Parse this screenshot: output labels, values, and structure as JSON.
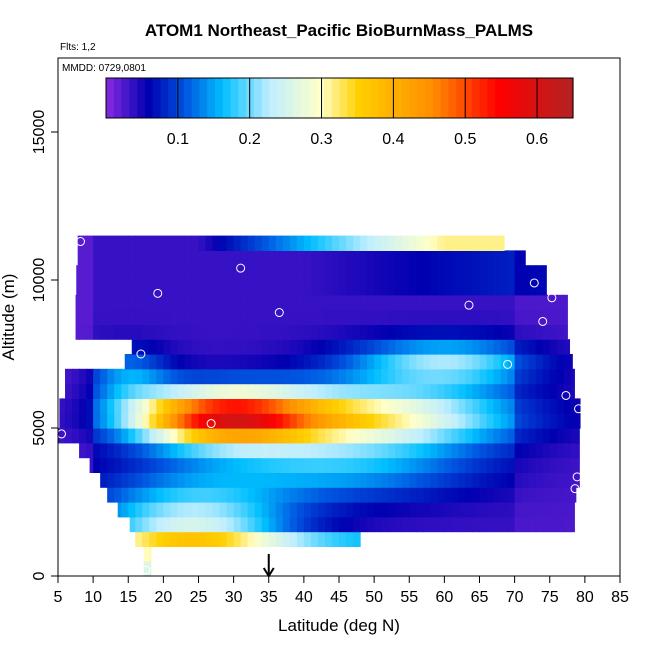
{
  "chart_data": {
    "type": "heatmap",
    "title": "ATOM1 Northeast_Pacific BioBurnMass_PALMS",
    "annotations": {
      "flights": "Flts: 1,2",
      "dates": "MMDD: 0729,0801"
    },
    "xlabel": "Latitude (deg N)",
    "ylabel": "Altitude (m)",
    "xlim": [
      5,
      85
    ],
    "ylim": [
      0,
      17500
    ],
    "xticks": [
      "5",
      "10",
      "15",
      "20",
      "25",
      "30",
      "35",
      "40",
      "45",
      "50",
      "55",
      "60",
      "65",
      "70",
      "75",
      "80",
      "85"
    ],
    "yticks": [
      "0",
      "5000",
      "10000",
      "15000"
    ],
    "ytick_values": [
      0,
      5000,
      10000,
      15000
    ],
    "colorbar": {
      "range": [
        0,
        0.65
      ],
      "ticks": [
        "0.1",
        "0.2",
        "0.3",
        "0.4",
        "0.5",
        "0.6"
      ],
      "tick_values": [
        0.1,
        0.2,
        0.3,
        0.4,
        0.5,
        0.6
      ],
      "stops": [
        [
          0.0,
          "#8a2be2"
        ],
        [
          0.09,
          "#0000b0"
        ],
        [
          0.17,
          "#0055e0"
        ],
        [
          0.25,
          "#00bfff"
        ],
        [
          0.35,
          "#bfeeff"
        ],
        [
          0.46,
          "#ffffc8"
        ],
        [
          0.54,
          "#ffd000"
        ],
        [
          0.7,
          "#ff8c00"
        ],
        [
          0.84,
          "#ff0000"
        ],
        [
          1.0,
          "#b22222"
        ]
      ]
    },
    "sample_points": [
      {
        "lat": 8.2,
        "alt": 11300
      },
      {
        "lat": 31.0,
        "alt": 10400
      },
      {
        "lat": 19.2,
        "alt": 9550
      },
      {
        "lat": 36.5,
        "alt": 8900
      },
      {
        "lat": 63.5,
        "alt": 9150
      },
      {
        "lat": 72.8,
        "alt": 9900
      },
      {
        "lat": 76.2,
        "alt": 9700
      },
      {
        "lat": 75.3,
        "alt": 9400
      },
      {
        "lat": 74.0,
        "alt": 8600
      },
      {
        "lat": 16.8,
        "alt": 7500
      },
      {
        "lat": 69.0,
        "alt": 7150
      },
      {
        "lat": 77.3,
        "alt": 6100
      },
      {
        "lat": 79.1,
        "alt": 5650
      },
      {
        "lat": 5.5,
        "alt": 4800
      },
      {
        "lat": 26.8,
        "alt": 5150
      },
      {
        "lat": 78.9,
        "alt": 3350
      },
      {
        "lat": 78.6,
        "alt": 2950
      },
      {
        "lat": 77.9,
        "alt": 1200
      },
      {
        "lat": 17.5,
        "alt": 200
      }
    ],
    "marker": {
      "lat": 35,
      "label": "arrow"
    },
    "grid": false
  }
}
